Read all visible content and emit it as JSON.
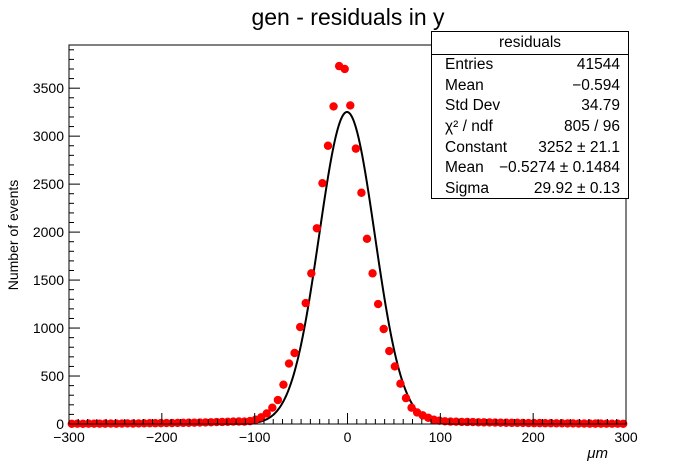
{
  "title": "gen - residuals in y",
  "stats": {
    "header": "residuals",
    "rows": [
      {
        "label": "Entries",
        "value": "41544"
      },
      {
        "label": "Mean",
        "value": "−0.594"
      },
      {
        "label": "Std Dev",
        "value": "34.79"
      },
      {
        "label": "χ² / ndf",
        "value": "805 / 96"
      },
      {
        "label": "Constant",
        "value": "3252 ± 21.1"
      },
      {
        "label": "Mean",
        "value": "−0.5274 ± 0.1484"
      },
      {
        "label": "Sigma",
        "value": "29.92 ± 0.13"
      }
    ]
  },
  "chart_data": {
    "type": "scatter",
    "title": "gen - residuals in y",
    "xlabel": "μm",
    "ylabel": "Number of events",
    "xlim": [
      -300,
      300
    ],
    "ylim": [
      0,
      3950
    ],
    "xticks": [
      "−300",
      "−200",
      "−100",
      "0",
      "100",
      "200",
      "300"
    ],
    "yticks": [
      "0",
      "500",
      "1000",
      "1500",
      "2000",
      "2500",
      "3000",
      "3500"
    ],
    "grid": false,
    "marker_color": "#ff0000",
    "fit_color": "#000000",
    "series": [
      {
        "x": [
          -297,
          -291,
          -285,
          -279,
          -273,
          -267,
          -261,
          -255,
          -249,
          -243,
          -237,
          -231,
          -225,
          -219,
          -213,
          -207,
          -201,
          -195,
          -189,
          -183,
          -177,
          -171,
          -165,
          -159,
          -153,
          -147,
          -141,
          -135,
          -129,
          -123,
          -117,
          -111,
          -105,
          -99,
          -93,
          -87,
          -81,
          -75,
          -69,
          -63,
          -57,
          -51,
          -45,
          -39,
          -33,
          -27,
          -21,
          -15,
          -9,
          -3,
          3,
          9,
          15,
          21,
          27,
          33,
          39,
          45,
          51,
          57,
          63,
          69,
          75,
          81,
          87,
          93,
          99,
          105,
          111,
          117,
          123,
          129,
          135,
          141,
          147,
          153,
          159,
          165,
          171,
          177,
          183,
          189,
          195,
          201,
          207,
          213,
          219,
          225,
          231,
          237,
          243,
          249,
          255,
          261,
          267,
          273,
          279,
          285,
          291,
          297
        ],
        "y": [
          2,
          3,
          2,
          4,
          3,
          3,
          4,
          5,
          4,
          5,
          6,
          5,
          6,
          7,
          8,
          8,
          9,
          10,
          10,
          11,
          12,
          13,
          14,
          15,
          16,
          18,
          20,
          21,
          23,
          25,
          26,
          25,
          30,
          45,
          70,
          110,
          170,
          250,
          410,
          630,
          740,
          1010,
          1260,
          1570,
          2040,
          2510,
          2900,
          3310,
          3730,
          3700,
          3320,
          2870,
          2410,
          1930,
          1570,
          1250,
          990,
          760,
          600,
          420,
          270,
          170,
          120,
          90,
          65,
          45,
          35,
          28,
          25,
          24,
          22,
          21,
          20,
          18,
          17,
          16,
          15,
          14,
          13,
          12,
          12,
          11,
          10,
          9,
          9,
          8,
          8,
          7,
          7,
          6,
          6,
          5,
          5,
          4,
          4,
          4,
          3,
          3,
          3,
          2
        ]
      }
    ],
    "fit": {
      "constant": 3252,
      "mean": -0.5274,
      "sigma": 29.92
    }
  }
}
